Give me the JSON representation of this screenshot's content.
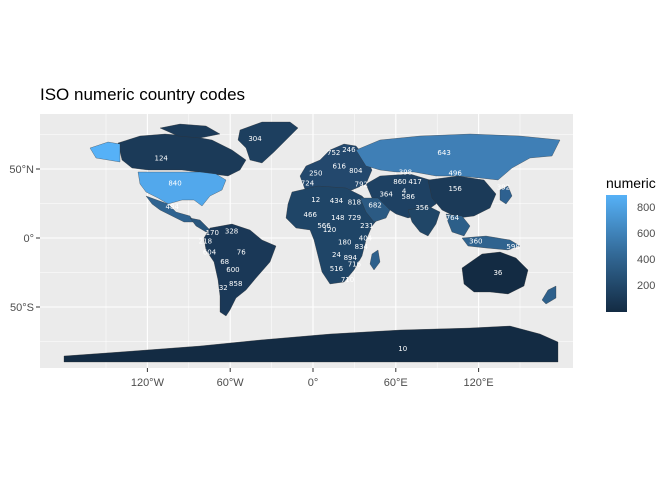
{
  "title": "ISO numeric country codes",
  "legend": {
    "title": "numeric",
    "labels": [
      "800",
      "600",
      "400",
      "200"
    ],
    "gradient": [
      "#132b43",
      "#56b1f7"
    ],
    "range": [
      4,
      894
    ]
  },
  "axes": {
    "x_ticks": [
      "120°W",
      "60°W",
      "0°",
      "60°E",
      "120°E"
    ],
    "y_ticks": [
      "50°N",
      "0°",
      "50°S"
    ]
  },
  "colors": {
    "panel": "#ebebeb",
    "grid": "#ffffff",
    "low": "#132b43",
    "high": "#56b1f7"
  },
  "chart_data": {
    "type": "choropleth",
    "title": "ISO numeric country codes",
    "fill_variable": "numeric",
    "xlim": [
      -180,
      180
    ],
    "ylim": [
      -90,
      84
    ],
    "labels": [
      {
        "code": "304",
        "lon": -42,
        "lat": 72
      },
      {
        "code": "124",
        "lon": -110,
        "lat": 58
      },
      {
        "code": "840",
        "lon": -100,
        "lat": 40
      },
      {
        "code": "484",
        "lon": -102,
        "lat": 23
      },
      {
        "code": "643",
        "lon": 95,
        "lat": 62
      },
      {
        "code": "398",
        "lon": 67,
        "lat": 48
      },
      {
        "code": "156",
        "lon": 103,
        "lat": 36
      },
      {
        "code": "496",
        "lon": 103,
        "lat": 47
      },
      {
        "code": "356",
        "lon": 79,
        "lat": 22
      },
      {
        "code": "586",
        "lon": 69,
        "lat": 30
      },
      {
        "code": "860",
        "lon": 63,
        "lat": 41
      },
      {
        "code": "417",
        "lon": 74,
        "lat": 41
      },
      {
        "code": "36",
        "lon": 134,
        "lat": -25
      },
      {
        "code": "10",
        "lon": 65,
        "lat": -80
      },
      {
        "code": "76",
        "lon": -52,
        "lat": -10
      },
      {
        "code": "32",
        "lon": -65,
        "lat": -36
      },
      {
        "code": "68",
        "lon": -64,
        "lat": -17
      },
      {
        "code": "600",
        "lon": -58,
        "lat": -23
      },
      {
        "code": "604",
        "lon": -75,
        "lat": -10
      },
      {
        "code": "170",
        "lon": -73,
        "lat": 4
      },
      {
        "code": "218",
        "lon": -78,
        "lat": -2
      },
      {
        "code": "328",
        "lon": -59,
        "lat": 5
      },
      {
        "code": "858",
        "lon": -56,
        "lat": -33
      },
      {
        "code": "12",
        "lon": 2,
        "lat": 28
      },
      {
        "code": "434",
        "lon": 17,
        "lat": 27
      },
      {
        "code": "818",
        "lon": 30,
        "lat": 26
      },
      {
        "code": "466",
        "lon": -2,
        "lat": 17
      },
      {
        "code": "148",
        "lon": 18,
        "lat": 15
      },
      {
        "code": "729",
        "lon": 30,
        "lat": 15
      },
      {
        "code": "566",
        "lon": 8,
        "lat": 9
      },
      {
        "code": "120",
        "lon": 12,
        "lat": 6
      },
      {
        "code": "180",
        "lon": 23,
        "lat": -3
      },
      {
        "code": "24",
        "lon": 17,
        "lat": -12
      },
      {
        "code": "894",
        "lon": 27,
        "lat": -14
      },
      {
        "code": "516",
        "lon": 17,
        "lat": -22
      },
      {
        "code": "710",
        "lon": 25,
        "lat": -30
      },
      {
        "code": "716",
        "lon": 30,
        "lat": -19
      },
      {
        "code": "834",
        "lon": 35,
        "lat": -6
      },
      {
        "code": "404",
        "lon": 38,
        "lat": 0
      },
      {
        "code": "231",
        "lon": 39,
        "lat": 9
      },
      {
        "code": "682",
        "lon": 45,
        "lat": 24
      },
      {
        "code": "792",
        "lon": 35,
        "lat": 39
      },
      {
        "code": "364",
        "lon": 53,
        "lat": 32
      },
      {
        "code": "250",
        "lon": 2,
        "lat": 47
      },
      {
        "code": "724",
        "lon": -4,
        "lat": 40
      },
      {
        "code": "246",
        "lon": 26,
        "lat": 64
      },
      {
        "code": "752",
        "lon": 15,
        "lat": 62
      },
      {
        "code": "616",
        "lon": 19,
        "lat": 52
      },
      {
        "code": "804",
        "lon": 31,
        "lat": 49
      },
      {
        "code": "4",
        "lon": 66,
        "lat": 34
      },
      {
        "code": "764",
        "lon": 101,
        "lat": 15
      },
      {
        "code": "360",
        "lon": 118,
        "lat": -2
      },
      {
        "code": "598",
        "lon": 145,
        "lat": -6
      },
      {
        "code": "392",
        "lon": 138,
        "lat": 37
      }
    ]
  }
}
